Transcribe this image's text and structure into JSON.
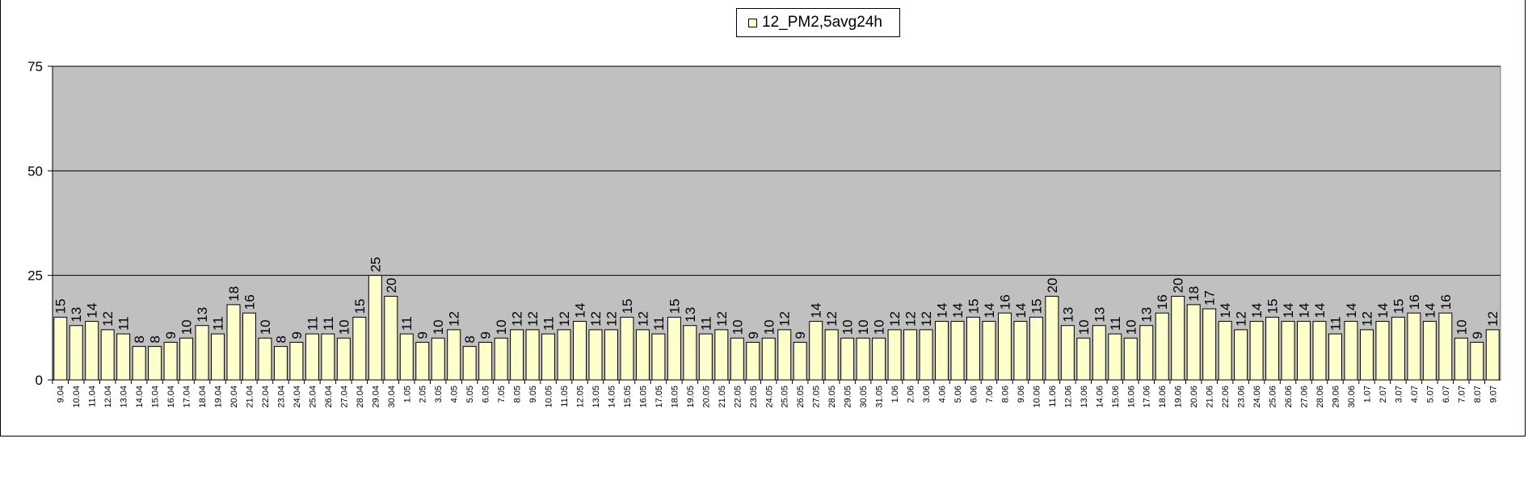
{
  "chart_data": {
    "type": "bar",
    "title": "",
    "xlabel": "",
    "ylabel": "",
    "ylim": [
      0,
      75
    ],
    "y_ticks": [
      0,
      25,
      50,
      75
    ],
    "grid": "horizontal",
    "legend_position": "top-center",
    "colors": {
      "bar_fill": "#ffffcc",
      "bar_stroke": "#000000",
      "plot_bg": "#c0c0c0"
    },
    "categories": [
      "9.04",
      "10.04",
      "11.04",
      "12.04",
      "13.04",
      "14.04",
      "15.04",
      "16.04",
      "17.04",
      "18.04",
      "19.04",
      "20.04",
      "21.04",
      "22.04",
      "23.04",
      "24.04",
      "25.04",
      "26.04",
      "27.04",
      "28.04",
      "29.04",
      "30.04",
      "1.05",
      "2.05",
      "3.05",
      "4.05",
      "5.05",
      "6.05",
      "7.05",
      "8.05",
      "9.05",
      "10.05",
      "11.05",
      "12.05",
      "13.05",
      "14.05",
      "15.05",
      "16.05",
      "17.05",
      "18.05",
      "19.05",
      "20.05",
      "21.05",
      "22.05",
      "23.05",
      "24.05",
      "25.05",
      "26.05",
      "27.05",
      "28.05",
      "29.05",
      "30.05",
      "31.05",
      "1.06",
      "2.06",
      "3.06",
      "4.06",
      "5.06",
      "6.06",
      "7.06",
      "8.06",
      "9.06",
      "10.06",
      "11.06",
      "12.06",
      "13.06",
      "14.06",
      "15.06",
      "16.06",
      "17.06",
      "18.06",
      "19.06",
      "20.06",
      "21.06",
      "22.06",
      "23.06",
      "24.06",
      "25.06",
      "26.06",
      "27.06",
      "28.06",
      "29.06",
      "30.06",
      "1.07",
      "2.07",
      "3.07",
      "4.07",
      "5.07",
      "6.07",
      "7.07",
      "8.07",
      "9.07"
    ],
    "series": [
      {
        "name": "12_PM2,5avg24h",
        "values": [
          15,
          13,
          14,
          12,
          11,
          8,
          8,
          9,
          10,
          13,
          11,
          18,
          16,
          10,
          8,
          9,
          11,
          11,
          10,
          15,
          25,
          20,
          11,
          9,
          10,
          12,
          8,
          9,
          10,
          12,
          12,
          11,
          12,
          14,
          12,
          12,
          15,
          12,
          11,
          15,
          13,
          11,
          12,
          10,
          9,
          10,
          12,
          9,
          14,
          12,
          10,
          10,
          10,
          12,
          12,
          12,
          14,
          14,
          15,
          14,
          16,
          14,
          15,
          20,
          13,
          10,
          13,
          11,
          10,
          13,
          16,
          20,
          18,
          17,
          14,
          12,
          14,
          15,
          14,
          14,
          14,
          11,
          14,
          12,
          14,
          15,
          16,
          14,
          16,
          10,
          9,
          12
        ]
      }
    ]
  }
}
